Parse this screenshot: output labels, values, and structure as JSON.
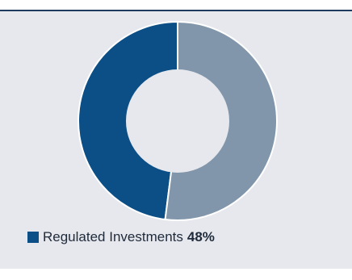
{
  "chart_data": {
    "type": "pie",
    "style": "donut",
    "slices": [
      {
        "label": "Regulated Investments",
        "value": 48,
        "color": "#0b4f86",
        "value_label": "48%"
      },
      {
        "label": "",
        "value": 52,
        "color": "#8196ab"
      }
    ],
    "legend": {
      "placement": "bottom-left",
      "entries": [
        {
          "label": "Regulated Investments",
          "value_label": "48%",
          "color": "#0b4f86"
        }
      ]
    }
  },
  "colors": {
    "panel_background": "#e6e8ed",
    "top_rule": "#1e3a5c",
    "hole": "#e6e8ed",
    "separator": "#ffffff"
  }
}
